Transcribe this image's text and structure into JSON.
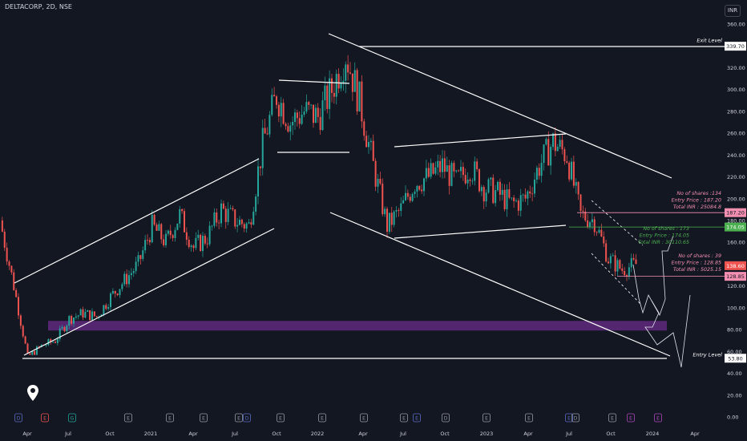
{
  "header": {
    "symbol": "DELTACORP, 2D, NSE",
    "currency": "INR"
  },
  "colors": {
    "background": "#131722",
    "up": "#26a69a",
    "down": "#ef5350",
    "lines": "#ffffff",
    "zone": "#6a2c8a",
    "pink": "#f48fb1",
    "green": "#4caf50"
  },
  "chart_data": {
    "type": "candlestick",
    "title": "",
    "ylim": [
      0,
      370
    ],
    "yticks": [
      "0.00",
      "20.00",
      "40.00",
      "60.00",
      "80.00",
      "100.00",
      "120.00",
      "140.00",
      "160.00",
      "180.00",
      "200.00",
      "220.00",
      "240.00",
      "260.00",
      "280.00",
      "300.00",
      "320.00",
      "340.00",
      "360.00"
    ],
    "xticks": [
      "Apr",
      "Jul",
      "Oct",
      "2021",
      "Apr",
      "Jul",
      "Oct",
      "2022",
      "Apr",
      "Jul",
      "Oct",
      "2023",
      "Apr",
      "Jul",
      "Oct",
      "2024",
      "Apr"
    ],
    "price_path": [
      [
        "2020-02",
        180
      ],
      [
        "2020-03",
        120
      ],
      [
        "2020-04",
        55
      ],
      [
        "2020-05",
        65
      ],
      [
        "2020-06",
        70
      ],
      [
        "2020-07",
        90
      ],
      [
        "2020-08",
        95
      ],
      [
        "2020-09",
        92
      ],
      [
        "2020-10",
        110
      ],
      [
        "2020-11",
        125
      ],
      [
        "2020-12",
        140
      ],
      [
        "2021-01",
        175
      ],
      [
        "2021-02",
        160
      ],
      [
        "2021-03",
        185
      ],
      [
        "2021-04",
        155
      ],
      [
        "2021-05",
        165
      ],
      [
        "2021-06",
        190
      ],
      [
        "2021-07",
        180
      ],
      [
        "2021-08",
        175
      ],
      [
        "2021-09",
        250
      ],
      [
        "2021-10",
        295
      ],
      [
        "2021-11",
        270
      ],
      [
        "2021-12",
        280
      ],
      [
        "2022-01",
        275
      ],
      [
        "2022-02",
        300
      ],
      [
        "2022-03",
        333
      ],
      [
        "2022-04",
        290
      ],
      [
        "2022-05",
        230
      ],
      [
        "2022-06",
        175
      ],
      [
        "2022-07",
        190
      ],
      [
        "2022-08",
        215
      ],
      [
        "2022-09",
        220
      ],
      [
        "2022-10",
        230
      ],
      [
        "2022-11",
        215
      ],
      [
        "2022-12",
        230
      ],
      [
        "2023-01",
        210
      ],
      [
        "2023-02",
        205
      ],
      [
        "2023-03",
        195
      ],
      [
        "2023-04",
        200
      ],
      [
        "2023-05",
        230
      ],
      [
        "2023-06",
        252
      ],
      [
        "2023-07",
        240
      ],
      [
        "2023-08",
        185
      ],
      [
        "2023-09",
        180
      ],
      [
        "2023-10",
        145
      ],
      [
        "2023-11",
        135
      ],
      [
        "2023-12",
        140
      ]
    ],
    "levels": [
      {
        "label": "Exit Level",
        "value": "339.70"
      },
      {
        "label": "Entry Level",
        "value": "53.80"
      }
    ],
    "price_tags": [
      {
        "value": "187.20",
        "color": "#f48fb1"
      },
      {
        "value": "174.05",
        "color": "#4caf50"
      },
      {
        "value": "138.60",
        "color": "#ef5350"
      },
      {
        "value": "128.85",
        "color": "#f48fb1"
      }
    ],
    "positions": [
      {
        "shares": "No of shares :134",
        "entry": "Entry Price  : 187.20",
        "total": "Total INR   : 25084.8",
        "color": "#f48fb1"
      },
      {
        "shares": "No of shares : 173",
        "entry": "Entry Price : 174.05",
        "total": "Total INR   : 30110.65",
        "color": "#4caf50"
      },
      {
        "shares": "No of shares : 39",
        "entry": "Entry Price : 128.85",
        "total": "Total INR   : 5025.15",
        "color": "#f48fb1"
      }
    ],
    "event_markers": [
      "D",
      "E",
      "G",
      "E",
      "E",
      "E",
      "E",
      "D",
      "E",
      "E",
      "E",
      "E",
      "E",
      "D",
      "E",
      "E",
      "E",
      "D",
      "E",
      "E",
      "E",
      "D",
      "E",
      "E"
    ]
  }
}
